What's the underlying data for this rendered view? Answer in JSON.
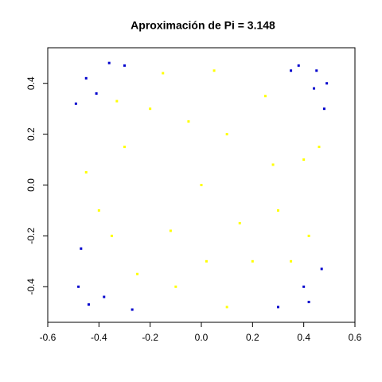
{
  "chart_data": {
    "type": "scatter",
    "title": "Aproximación de Pi = 3.148",
    "xlim": [
      -0.6,
      0.6
    ],
    "ylim": [
      -0.54,
      0.54
    ],
    "xticks": [
      -0.6,
      -0.4,
      -0.2,
      {
        "value": 0,
        "label": "0.0"
      },
      0.2,
      0.4,
      0.6
    ],
    "yticks": [
      -0.4,
      -0.2,
      {
        "value": 0,
        "label": "0.0"
      },
      0.2,
      0.4
    ],
    "series": [
      {
        "color": "#0000cd",
        "x": [
          0.45,
          -0.45,
          0.42,
          -0.48,
          0.38,
          -0.36,
          0.48,
          -0.49,
          0.47,
          -0.44,
          0.3,
          -0.3,
          0.49,
          -0.41,
          0.4,
          -0.38,
          0.44,
          -0.47,
          0.35,
          -0.27
        ],
        "y": [
          0.45,
          0.42,
          -0.46,
          -0.4,
          0.47,
          0.48,
          0.3,
          0.32,
          -0.33,
          -0.47,
          -0.48,
          0.47,
          0.4,
          0.36,
          -0.4,
          -0.44,
          0.38,
          -0.25,
          0.45,
          -0.49
        ]
      },
      {
        "color": "#ffff00",
        "x": [
          0,
          0.1,
          -0.2,
          0.3,
          -0.35,
          0.25,
          -0.1,
          0.4,
          -0.45,
          0.05,
          0.2,
          -0.3,
          0.15,
          -0.05,
          0.35,
          -0.25,
          0.42,
          -0.15,
          0.1,
          -0.4,
          0.28,
          -0.12,
          0.02,
          0.46,
          -0.33
        ],
        "y": [
          0,
          0.2,
          0.3,
          -0.1,
          -0.2,
          0.35,
          -0.4,
          0.1,
          0.05,
          0.45,
          -0.3,
          0.15,
          -0.15,
          0.25,
          -0.3,
          -0.35,
          -0.2,
          0.44,
          -0.48,
          -0.1,
          0.08,
          -0.18,
          -0.3,
          0.15,
          0.33
        ]
      }
    ]
  }
}
